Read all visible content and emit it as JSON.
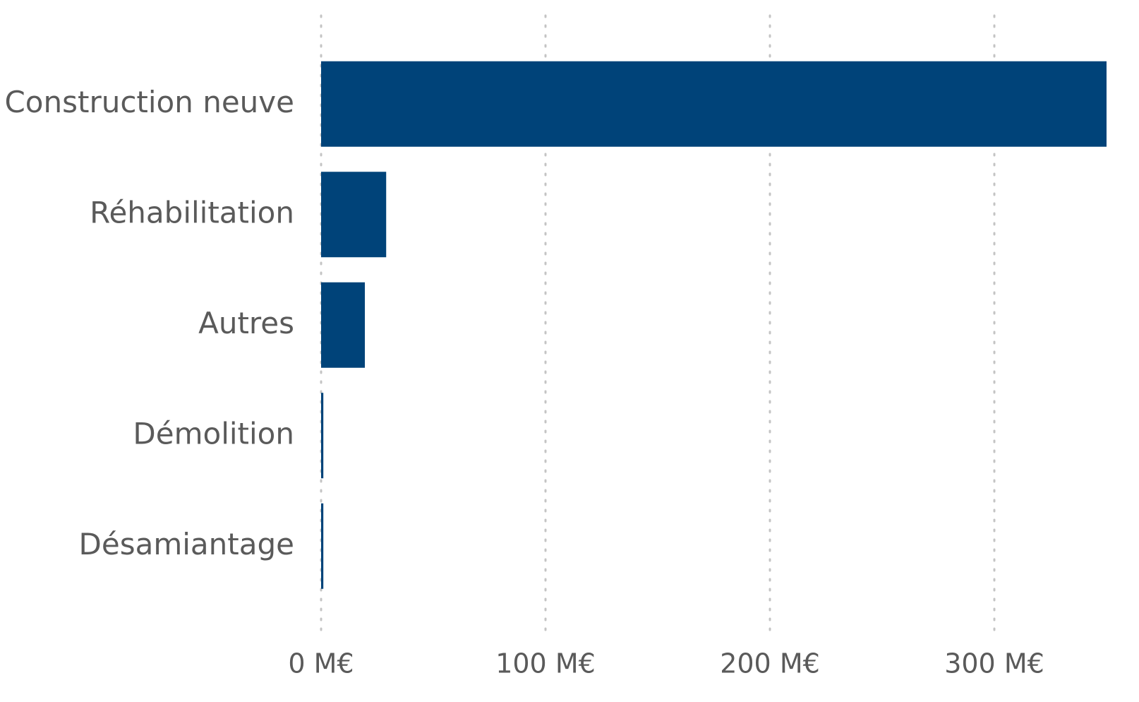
{
  "chart_data": {
    "type": "bar",
    "orientation": "horizontal",
    "categories": [
      "Construction neuve",
      "Réhabilitation",
      "Autres",
      "Démolition",
      "Désamiantage"
    ],
    "values": [
      350,
      29,
      19.5,
      1,
      1
    ],
    "color": "#004379",
    "xlim": [
      0,
      350
    ],
    "xticks": [
      {
        "value": 0,
        "label": "0 M€"
      },
      {
        "value": 100,
        "label": "100 M€"
      },
      {
        "value": 200,
        "label": "200 M€"
      },
      {
        "value": 300,
        "label": "300 M€"
      }
    ],
    "grid": true
  }
}
